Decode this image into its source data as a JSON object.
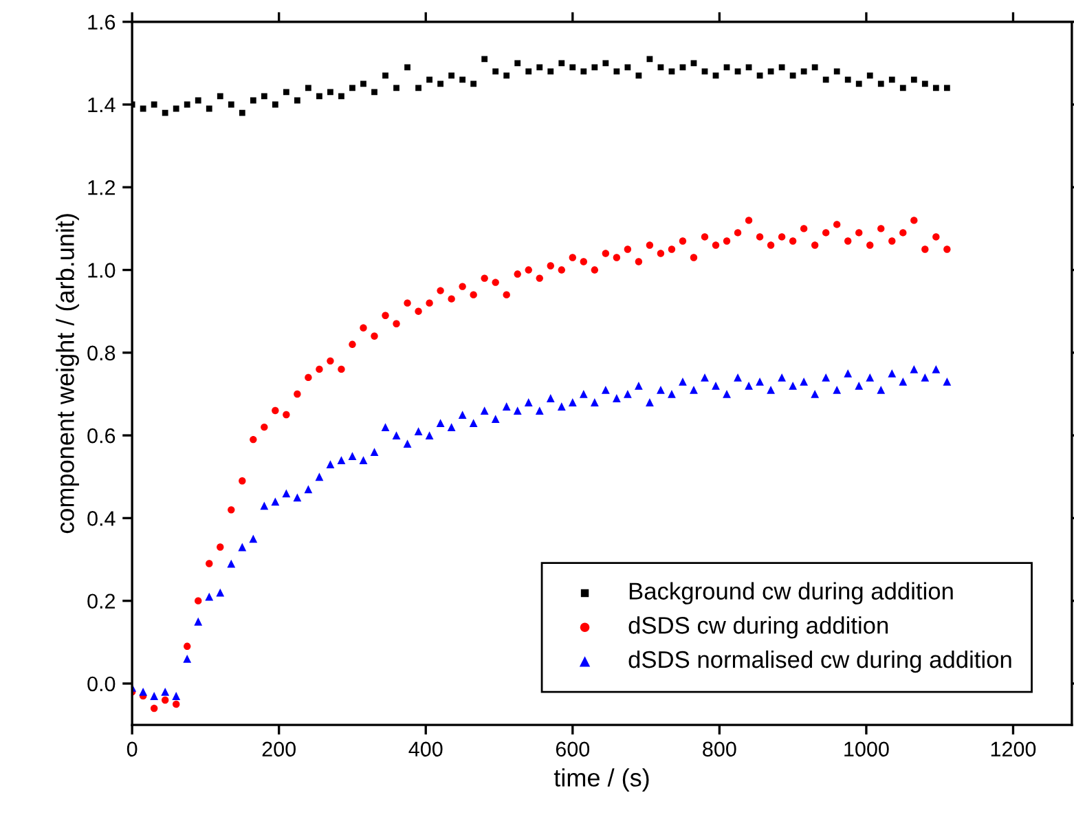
{
  "chart_data": {
    "type": "scatter",
    "xlabel": "time / (s)",
    "ylabel": "component weight / (arb.unit)",
    "x": [
      0,
      15,
      30,
      45,
      60,
      75,
      90,
      105,
      120,
      135,
      150,
      165,
      180,
      195,
      210,
      225,
      240,
      255,
      270,
      285,
      300,
      315,
      330,
      345,
      360,
      375,
      390,
      405,
      420,
      435,
      450,
      465,
      480,
      495,
      510,
      525,
      540,
      555,
      570,
      585,
      600,
      615,
      630,
      645,
      660,
      675,
      690,
      705,
      720,
      735,
      750,
      765,
      780,
      795,
      810,
      825,
      840,
      855,
      870,
      885,
      900,
      915,
      930,
      945,
      960,
      975,
      990,
      1005,
      1020,
      1035,
      1050,
      1065,
      1080,
      1095,
      1110
    ],
    "series": [
      {
        "name": "Background cw during addition",
        "color": "#000000",
        "marker": "square",
        "values": [
          1.4,
          1.39,
          1.4,
          1.38,
          1.39,
          1.4,
          1.41,
          1.39,
          1.42,
          1.4,
          1.38,
          1.41,
          1.42,
          1.4,
          1.43,
          1.41,
          1.44,
          1.42,
          1.43,
          1.42,
          1.44,
          1.45,
          1.43,
          1.47,
          1.44,
          1.49,
          1.44,
          1.46,
          1.45,
          1.47,
          1.46,
          1.45,
          1.51,
          1.48,
          1.47,
          1.5,
          1.48,
          1.49,
          1.48,
          1.5,
          1.49,
          1.48,
          1.49,
          1.5,
          1.48,
          1.49,
          1.47,
          1.51,
          1.49,
          1.48,
          1.49,
          1.5,
          1.48,
          1.47,
          1.49,
          1.48,
          1.49,
          1.47,
          1.48,
          1.49,
          1.47,
          1.48,
          1.49,
          1.46,
          1.48,
          1.46,
          1.45,
          1.47,
          1.45,
          1.46,
          1.44,
          1.46,
          1.45,
          1.44,
          1.44
        ]
      },
      {
        "name": "dSDS cw during addition",
        "color": "#ff0000",
        "marker": "circle",
        "values": [
          -0.02,
          -0.03,
          -0.06,
          -0.04,
          -0.05,
          0.09,
          0.2,
          0.29,
          0.33,
          0.42,
          0.49,
          0.59,
          0.62,
          0.66,
          0.65,
          0.7,
          0.74,
          0.76,
          0.78,
          0.76,
          0.82,
          0.86,
          0.84,
          0.89,
          0.87,
          0.92,
          0.9,
          0.92,
          0.95,
          0.93,
          0.96,
          0.94,
          0.98,
          0.97,
          0.94,
          0.99,
          1.0,
          0.98,
          1.01,
          1.0,
          1.03,
          1.02,
          1.0,
          1.04,
          1.03,
          1.05,
          1.02,
          1.06,
          1.04,
          1.05,
          1.07,
          1.03,
          1.08,
          1.06,
          1.07,
          1.09,
          1.12,
          1.08,
          1.06,
          1.08,
          1.07,
          1.1,
          1.06,
          1.09,
          1.11,
          1.07,
          1.09,
          1.06,
          1.1,
          1.07,
          1.09,
          1.12,
          1.05,
          1.08,
          1.05
        ]
      },
      {
        "name": "dSDS normalised cw during addition",
        "color": "#0000ff",
        "marker": "triangle",
        "values": [
          -0.01,
          -0.02,
          -0.03,
          -0.02,
          -0.03,
          0.06,
          0.15,
          0.21,
          0.22,
          0.29,
          0.33,
          0.35,
          0.43,
          0.44,
          0.46,
          0.45,
          0.47,
          0.5,
          0.53,
          0.54,
          0.55,
          0.54,
          0.56,
          0.62,
          0.6,
          0.58,
          0.61,
          0.6,
          0.63,
          0.62,
          0.65,
          0.63,
          0.66,
          0.64,
          0.67,
          0.66,
          0.68,
          0.66,
          0.69,
          0.67,
          0.68,
          0.7,
          0.68,
          0.71,
          0.69,
          0.7,
          0.72,
          0.68,
          0.71,
          0.7,
          0.73,
          0.71,
          0.74,
          0.72,
          0.7,
          0.74,
          0.72,
          0.73,
          0.71,
          0.74,
          0.72,
          0.73,
          0.7,
          0.74,
          0.71,
          0.75,
          0.72,
          0.74,
          0.71,
          0.75,
          0.73,
          0.76,
          0.74,
          0.76,
          0.73
        ]
      }
    ],
    "xlim": [
      0,
      1280
    ],
    "xticks": [
      0,
      200,
      400,
      600,
      800,
      1000,
      1200
    ],
    "ylim": [
      -0.1,
      1.6
    ],
    "yticks": [
      {
        "value": 0,
        "label": "0.0"
      },
      0.2,
      0.4,
      0.6,
      0.8,
      {
        "value": 1,
        "label": "1.0"
      },
      1.2,
      1.4,
      1.6
    ],
    "grid": false,
    "legend": "bottom right"
  }
}
